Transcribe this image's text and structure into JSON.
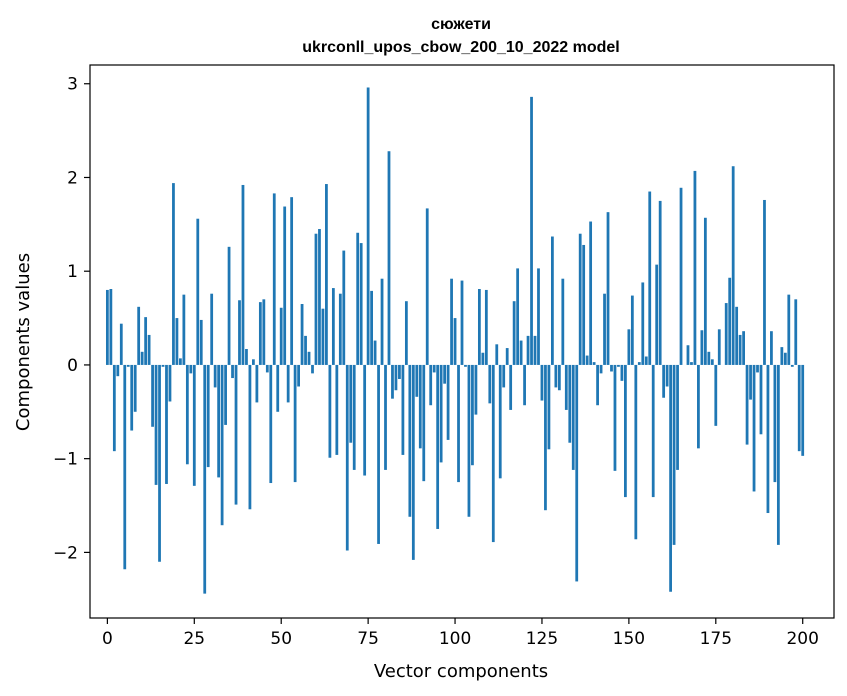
{
  "chart_data": {
    "type": "bar",
    "title_line1": "сюжети",
    "title_line2": "ukrconll_upos_cbow_200_10_2022 model",
    "xlabel": "Vector components",
    "ylabel": "Components values",
    "xlim": [
      -5,
      209
    ],
    "ylim": [
      -2.7,
      3.2
    ],
    "xticks": [
      0,
      25,
      50,
      75,
      100,
      125,
      150,
      175,
      200
    ],
    "xtick_labels": [
      "0",
      "25",
      "50",
      "75",
      "100",
      "125",
      "150",
      "175",
      "200"
    ],
    "yticks": [
      -2,
      -1,
      0,
      1,
      2,
      3
    ],
    "ytick_labels": [
      "−2",
      "−1",
      "0",
      "1",
      "2",
      "3"
    ],
    "bar_color": "#1f77b4",
    "grid": false,
    "values": [
      0.8,
      0.81,
      -0.92,
      -0.12,
      0.44,
      -2.18,
      -0.02,
      -0.7,
      -0.5,
      0.62,
      0.14,
      0.51,
      0.32,
      -0.66,
      -1.28,
      -2.1,
      -0.02,
      -1.27,
      -0.39,
      1.94,
      0.5,
      0.07,
      0.75,
      -1.06,
      -0.09,
      -1.29,
      1.56,
      0.48,
      -2.44,
      -1.09,
      0.76,
      -0.24,
      -1.2,
      -1.71,
      -0.64,
      1.26,
      -0.14,
      -1.49,
      0.69,
      1.92,
      0.17,
      -1.54,
      0.06,
      -0.4,
      0.67,
      0.7,
      -0.08,
      -1.26,
      1.83,
      -0.5,
      0.61,
      1.69,
      -0.4,
      1.79,
      -1.25,
      -0.23,
      0.65,
      0.31,
      0.14,
      -0.09,
      1.4,
      1.45,
      0.6,
      1.93,
      -0.99,
      0.82,
      -0.96,
      0.76,
      1.22,
      -1.98,
      -0.83,
      -1.12,
      1.41,
      1.3,
      -1.18,
      2.96,
      0.79,
      0.26,
      -1.91,
      0.92,
      -1.12,
      2.28,
      -0.36,
      -0.27,
      -0.15,
      -0.96,
      0.68,
      -1.62,
      -2.08,
      -0.34,
      -0.89,
      -1.24,
      1.67,
      -0.43,
      -0.08,
      -1.75,
      -1.04,
      -0.2,
      -0.8,
      0.92,
      0.5,
      -1.25,
      0.9,
      -0.02,
      -1.62,
      -1.07,
      -0.53,
      0.81,
      0.13,
      0.8,
      -0.41,
      -1.89,
      0.22,
      -1.21,
      -0.24,
      0.18,
      -0.48,
      0.68,
      1.03,
      0.26,
      -0.43,
      0.31,
      2.86,
      0.31,
      1.03,
      -0.38,
      -1.55,
      -0.9,
      1.37,
      -0.24,
      -0.27,
      0.92,
      -0.48,
      -0.83,
      -1.12,
      -2.31,
      1.4,
      1.28,
      0.1,
      1.53,
      0.03,
      -0.43,
      -0.09,
      0.76,
      1.63,
      -0.07,
      -1.13,
      -0.02,
      -0.17,
      -1.41,
      0.38,
      0.74,
      -1.86,
      0.03,
      0.88,
      0.09,
      1.85,
      -1.41,
      1.07,
      1.75,
      -0.35,
      -0.23,
      -2.42,
      -1.92,
      -1.12,
      1.89,
      0.0,
      0.21,
      0.03,
      2.07,
      -0.89,
      0.37,
      1.57,
      0.14,
      0.06,
      -0.65,
      0.38,
      0.0,
      0.66,
      0.93,
      2.12,
      0.62,
      0.32,
      0.36,
      -0.85,
      -0.37,
      -1.35,
      -0.08,
      -0.74,
      1.76,
      -1.58,
      0.36,
      -1.25,
      -1.92,
      0.19,
      0.13,
      0.75,
      -0.02,
      0.7,
      -0.92,
      -0.97
    ]
  }
}
